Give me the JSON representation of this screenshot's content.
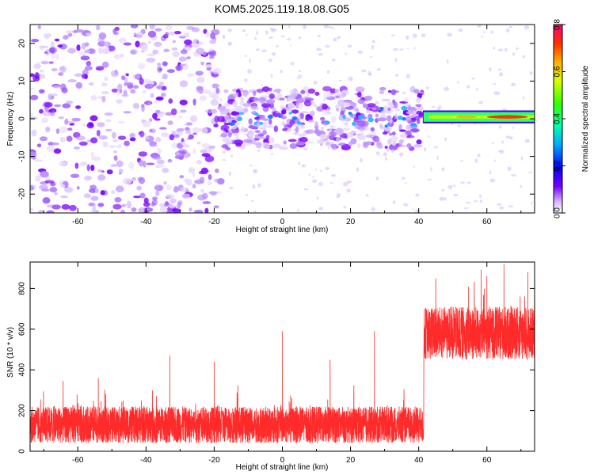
{
  "title": "KOM5.2025.119.18.08.G05",
  "colorbar": {
    "label": "Normalized spectral amplitude",
    "ticks": [
      "0.0",
      "0.2",
      "0.4",
      "0.6",
      "0.8"
    ],
    "range": [
      0,
      0.8
    ]
  },
  "chart_data": [
    {
      "type": "heatmap",
      "xlabel": "Height of straight line (km)",
      "ylabel": "Frequency (Hz)",
      "xlim": [
        -74,
        74
      ],
      "ylim": [
        -25,
        25
      ],
      "xticks": [
        "-60",
        "-40",
        "-20",
        "0",
        "20",
        "40",
        "60"
      ],
      "yticks": [
        "-20",
        "-10",
        "0",
        "10",
        "20"
      ],
      "grid": false,
      "description_regions": [
        {
          "x": [
            -74,
            -18
          ],
          "y": [
            -25,
            25
          ],
          "level": 0.12,
          "note": "scattered speckle noise"
        },
        {
          "x": [
            -18,
            41
          ],
          "y": [
            -8,
            8
          ],
          "level": 0.18,
          "note": "denser noise band around 0 Hz"
        },
        {
          "x": [
            41,
            74
          ],
          "y": [
            -1,
            2
          ],
          "level": 0.55,
          "note": "strong narrow band near 0 Hz, peak ~0.75 near 63-70 km"
        }
      ]
    },
    {
      "type": "line",
      "xlabel": "Height of straight line (km)",
      "ylabel": "SNR (10 * v/v)",
      "xlim": [
        -74,
        74
      ],
      "ylim": [
        0,
        930
      ],
      "xticks": [
        "-60",
        "-40",
        "-20",
        "0",
        "20",
        "40",
        "60"
      ],
      "yticks": [
        "0",
        "200",
        "400",
        "600",
        "800"
      ],
      "grid": false,
      "series": [
        {
          "segments": [
            {
              "x": [
                -74,
                41.5
              ],
              "mean": 130,
              "spread": 90,
              "spikes": [
                [
                  -33,
                  470
                ],
                [
                  -20,
                  440
                ],
                [
                  0,
                  590
                ],
                [
                  27,
                  590
                ],
                [
                  -54,
                  360
                ],
                [
                  14,
                  450
                ]
              ]
            },
            {
              "x": [
                41.5,
                74
              ],
              "mean": 580,
              "spread": 130,
              "spikes": [
                [
                  45,
                  850
                ],
                [
                  60,
                  860
                ],
                [
                  65,
                  920
                ],
                [
                  72,
                  880
                ]
              ]
            }
          ],
          "color": "#ff2a2a"
        }
      ]
    }
  ]
}
